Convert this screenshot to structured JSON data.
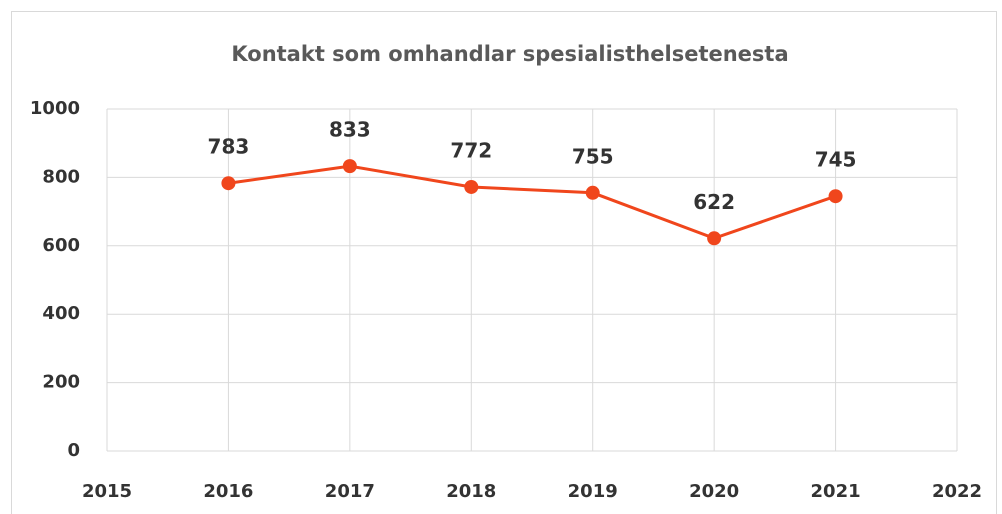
{
  "chart_data": {
    "type": "line",
    "title": "Kontakt som omhandlar spesialisthelsetenesta",
    "x": [
      2016,
      2017,
      2018,
      2019,
      2020,
      2021
    ],
    "series": [
      {
        "name": "Kontakt som omhandlar spesialisthelsetenesta",
        "color": "#f0461c",
        "values": [
          783,
          833,
          772,
          755,
          622,
          745
        ]
      }
    ],
    "xlim": [
      2015,
      2022
    ],
    "xticks": [
      2015,
      2016,
      2017,
      2018,
      2019,
      2020,
      2021,
      2022
    ],
    "ylim": [
      0,
      1000
    ],
    "yticks": [
      0,
      200,
      400,
      600,
      800,
      1000
    ],
    "grid": true
  }
}
